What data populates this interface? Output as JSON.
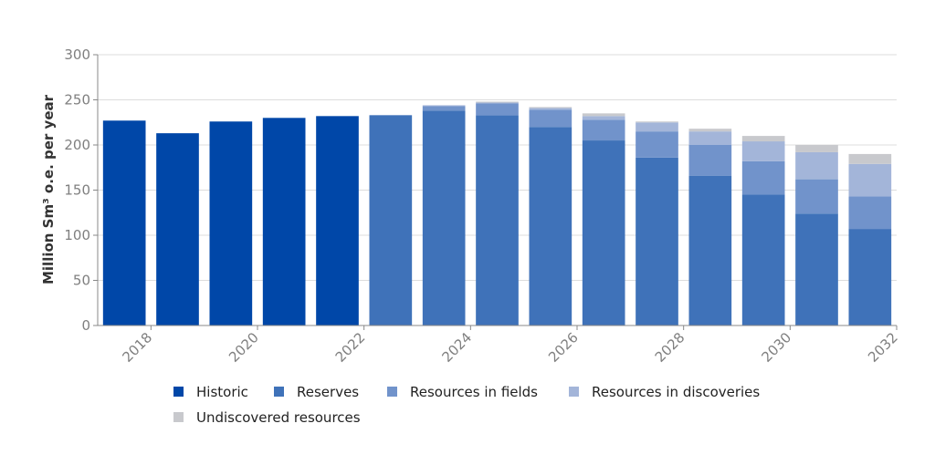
{
  "chart_data": {
    "type": "bar",
    "stacked": true,
    "title": "",
    "ylabel": "Million Sm³ o.e. per year",
    "xlabel": "",
    "ylim": [
      0,
      300
    ],
    "yticks": [
      0,
      50,
      100,
      150,
      200,
      250,
      300
    ],
    "x": [
      2018,
      2019,
      2020,
      2021,
      2022,
      2023,
      2024,
      2025,
      2026,
      2027,
      2028,
      2029,
      2030,
      2031,
      2032
    ],
    "xtick_labels": [
      "2018",
      "2020",
      "2022",
      "2024",
      "2026",
      "2028",
      "2030",
      "2032"
    ],
    "grid": "horizontal",
    "legend_position": "bottom",
    "series": [
      {
        "name": "Historic",
        "color": "#0047a8",
        "values": [
          227,
          213,
          226,
          230,
          232,
          0,
          0,
          0,
          0,
          0,
          0,
          0,
          0,
          0,
          0
        ]
      },
      {
        "name": "Reserves",
        "color": "#3f72b9",
        "values": [
          0,
          0,
          0,
          0,
          0,
          233,
          238,
          233,
          220,
          205,
          186,
          166,
          145,
          124,
          107
        ]
      },
      {
        "name": "Resources in fields",
        "color": "#7193cb",
        "values": [
          0,
          0,
          0,
          0,
          0,
          0,
          5,
          13,
          19,
          23,
          29,
          34,
          37,
          38,
          36
        ]
      },
      {
        "name": "Resources in discoveries",
        "color": "#a3b5d9",
        "values": [
          0,
          0,
          0,
          0,
          0,
          0,
          1,
          1,
          2,
          4,
          10,
          15,
          22,
          30,
          36
        ]
      },
      {
        "name": "Undiscovered resources",
        "color": "#c8c9cd",
        "values": [
          0,
          0,
          0,
          0,
          0,
          0,
          0,
          1,
          1,
          3,
          1,
          3,
          6,
          8,
          11
        ]
      }
    ]
  }
}
